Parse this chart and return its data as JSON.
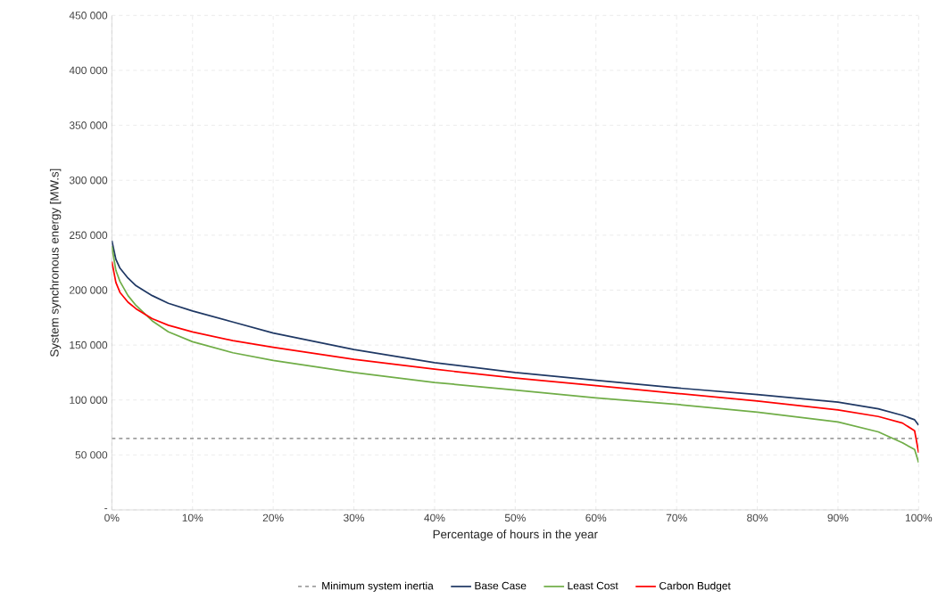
{
  "chart_data": {
    "type": "line",
    "xlabel": "Percentage of hours in the year",
    "ylabel": "System synchronous energy [MW.s]",
    "xlim": [
      0,
      100
    ],
    "ylim": [
      0,
      450000
    ],
    "xticks": [
      {
        "value": 0,
        "label": "0%"
      },
      {
        "value": 10,
        "label": "10%"
      },
      {
        "value": 20,
        "label": "20%"
      },
      {
        "value": 30,
        "label": "30%"
      },
      {
        "value": 40,
        "label": "40%"
      },
      {
        "value": 50,
        "label": "50%"
      },
      {
        "value": 60,
        "label": "60%"
      },
      {
        "value": 70,
        "label": "70%"
      },
      {
        "value": 80,
        "label": "80%"
      },
      {
        "value": 90,
        "label": "90%"
      },
      {
        "value": 100,
        "label": "100%"
      }
    ],
    "yticks": [
      {
        "value": 0,
        "label": "-"
      },
      {
        "value": 50000,
        "label": "50 000"
      },
      {
        "value": 100000,
        "label": "100 000"
      },
      {
        "value": 150000,
        "label": "150 000"
      },
      {
        "value": 200000,
        "label": "200 000"
      },
      {
        "value": 250000,
        "label": "250 000"
      },
      {
        "value": 300000,
        "label": "300 000"
      },
      {
        "value": 350000,
        "label": "350 000"
      },
      {
        "value": 400000,
        "label": "400 000"
      },
      {
        "value": 450000,
        "label": "450 000"
      }
    ],
    "grid": true,
    "legend": "bottom",
    "marker": "none",
    "series": [
      {
        "name": "Minimum system inertia",
        "color": "#a0a0a0",
        "line_style": "dashed",
        "x": [
          0,
          100
        ],
        "values": [
          65000,
          65000
        ]
      },
      {
        "name": "Base Case",
        "color": "#1f3864",
        "x": [
          0,
          0.5,
          1,
          2,
          3,
          5,
          7,
          10,
          15,
          20,
          30,
          40,
          50,
          60,
          70,
          80,
          90,
          95,
          98,
          99.5,
          100
        ],
        "values": [
          245000,
          228000,
          220000,
          211000,
          204000,
          195000,
          188000,
          181000,
          171000,
          161000,
          146000,
          134000,
          125000,
          118000,
          111000,
          105000,
          98000,
          92000,
          86000,
          82000,
          77000
        ]
      },
      {
        "name": "Least Cost",
        "color": "#70ad47",
        "x": [
          0,
          0.5,
          1,
          2,
          3,
          5,
          7,
          10,
          15,
          20,
          30,
          40,
          50,
          60,
          70,
          80,
          90,
          95,
          98,
          99.5,
          100
        ],
        "values": [
          240000,
          218000,
          208000,
          195000,
          186000,
          172000,
          162000,
          153000,
          143000,
          136000,
          125000,
          116000,
          109000,
          102000,
          96000,
          89000,
          80000,
          71000,
          61000,
          55000,
          43000
        ]
      },
      {
        "name": "Carbon Budget",
        "color": "#ff0000",
        "x": [
          0,
          0.5,
          1,
          2,
          3,
          5,
          7,
          10,
          15,
          20,
          30,
          40,
          50,
          60,
          70,
          80,
          90,
          95,
          98,
          99.5,
          100
        ],
        "values": [
          226000,
          207000,
          198000,
          189000,
          183000,
          174000,
          168000,
          162000,
          154000,
          148000,
          137000,
          128000,
          120000,
          113000,
          106000,
          99000,
          91000,
          85000,
          79000,
          72000,
          52000
        ]
      }
    ]
  }
}
